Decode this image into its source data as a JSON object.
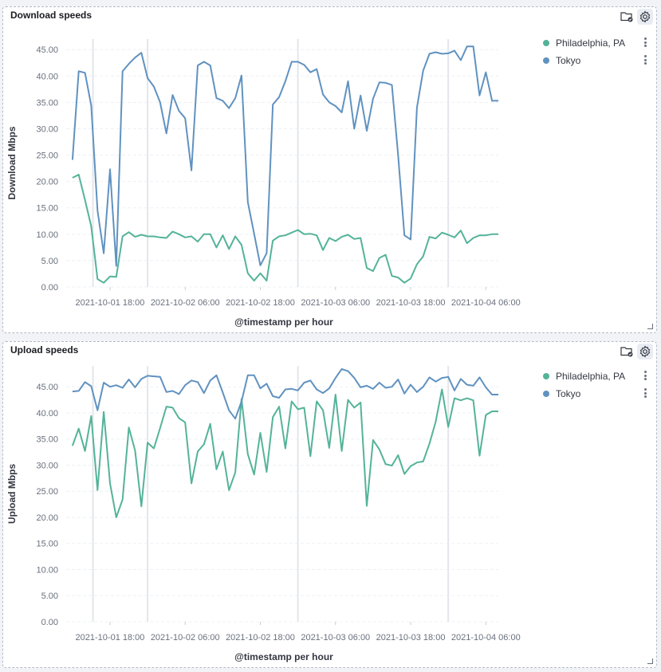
{
  "colors": {
    "series_philadelphia": "#54b399",
    "series_tokyo": "#6092c0",
    "grid": "#eef0f3",
    "axis_text": "#69707d"
  },
  "icons": [
    "folder-check-icon",
    "gear-icon",
    "more-vertical-icon",
    "resize-handle-icon"
  ],
  "panels": [
    {
      "title": "Download speeds",
      "legend": [
        {
          "label": "Philadelphia, PA"
        },
        {
          "label": "Tokyo"
        }
      ]
    },
    {
      "title": "Upload speeds",
      "legend": [
        {
          "label": "Philadelphia, PA"
        },
        {
          "label": "Tokyo"
        }
      ]
    }
  ],
  "chart_data": [
    {
      "type": "line",
      "title": "Download speeds",
      "xlabel": "@timestamp per hour",
      "ylabel": "Download Mbps",
      "ylim": [
        0,
        47
      ],
      "y_ticks": [
        "0.00",
        "5.00",
        "10.00",
        "15.00",
        "20.00",
        "25.00",
        "30.00",
        "35.00",
        "40.00",
        "45.00"
      ],
      "x_tick_labels": [
        "2021-10-01 18:00",
        "2021-10-02 06:00",
        "2021-10-02 18:00",
        "2021-10-03 06:00",
        "2021-10-03 18:00",
        "2021-10-04 06:00"
      ],
      "x_range": [
        "2021-10-01 11:00",
        "2021-10-04 08:00"
      ],
      "x": [
        "2021-10-01 12:00",
        "2021-10-01 13:00",
        "2021-10-01 14:00",
        "2021-10-01 15:00",
        "2021-10-01 16:00",
        "2021-10-01 17:00",
        "2021-10-01 18:00",
        "2021-10-01 19:00",
        "2021-10-01 20:00",
        "2021-10-01 21:00",
        "2021-10-01 22:00",
        "2021-10-01 23:00",
        "2021-10-02 00:00",
        "2021-10-02 01:00",
        "2021-10-02 02:00",
        "2021-10-02 03:00",
        "2021-10-02 04:00",
        "2021-10-02 05:00",
        "2021-10-02 06:00",
        "2021-10-02 07:00",
        "2021-10-02 08:00",
        "2021-10-02 09:00",
        "2021-10-02 10:00",
        "2021-10-02 11:00",
        "2021-10-02 12:00",
        "2021-10-02 13:00",
        "2021-10-02 14:00",
        "2021-10-02 15:00",
        "2021-10-02 16:00",
        "2021-10-02 17:00",
        "2021-10-02 18:00",
        "2021-10-02 19:00",
        "2021-10-02 20:00",
        "2021-10-02 21:00",
        "2021-10-02 22:00",
        "2021-10-02 23:00",
        "2021-10-03 00:00",
        "2021-10-03 01:00",
        "2021-10-03 02:00",
        "2021-10-03 03:00",
        "2021-10-03 04:00",
        "2021-10-03 05:00",
        "2021-10-03 06:00",
        "2021-10-03 07:00",
        "2021-10-03 08:00",
        "2021-10-03 09:00",
        "2021-10-03 10:00",
        "2021-10-03 11:00",
        "2021-10-03 12:00",
        "2021-10-03 13:00",
        "2021-10-03 14:00",
        "2021-10-03 15:00",
        "2021-10-03 16:00",
        "2021-10-03 17:00",
        "2021-10-03 18:00",
        "2021-10-03 19:00",
        "2021-10-03 20:00",
        "2021-10-03 21:00",
        "2021-10-03 22:00",
        "2021-10-03 23:00",
        "2021-10-04 00:00",
        "2021-10-04 01:00",
        "2021-10-04 02:00",
        "2021-10-04 03:00",
        "2021-10-04 04:00",
        "2021-10-04 05:00",
        "2021-10-04 06:00",
        "2021-10-04 07:00",
        "2021-10-04 08:00"
      ],
      "series": [
        {
          "name": "Philadelphia, PA",
          "color": "#54b399",
          "values": [
            20.7,
            21.3,
            16.5,
            11.5,
            1.5,
            0.8,
            2.0,
            1.9,
            9.6,
            10.4,
            9.5,
            9.9,
            9.6,
            9.6,
            9.4,
            9.3,
            10.5,
            10.0,
            9.4,
            9.6,
            8.6,
            10.0,
            10.0,
            7.5,
            9.8,
            7.2,
            9.6,
            8.0,
            2.6,
            1.2,
            2.6,
            1.2,
            8.8,
            9.6,
            9.8,
            10.3,
            10.8,
            10.0,
            10.1,
            9.8,
            7.0,
            9.3,
            8.7,
            9.5,
            9.9,
            9.1,
            9.3,
            3.6,
            3.0,
            5.5,
            6.1,
            2.1,
            1.8,
            0.8,
            1.6,
            4.3,
            5.8,
            9.5,
            9.2,
            10.3,
            9.9,
            9.4,
            10.7,
            8.3,
            9.3,
            9.8,
            9.8,
            10.0,
            10.0
          ]
        },
        {
          "name": "Tokyo",
          "color": "#6092c0",
          "values": [
            24.1,
            40.9,
            40.6,
            34.4,
            14.5,
            6.4,
            22.3,
            4.0,
            40.9,
            42.3,
            43.5,
            44.4,
            39.6,
            38.0,
            35.0,
            29.1,
            36.4,
            33.4,
            32.0,
            22.1,
            42.0,
            42.7,
            42.0,
            35.8,
            35.3,
            33.9,
            35.8,
            40.1,
            16.1,
            10.1,
            4.1,
            6.4,
            34.6,
            36.0,
            39.0,
            42.7,
            42.7,
            42.1,
            40.7,
            41.3,
            36.5,
            35.0,
            34.3,
            33.1,
            39.0,
            30.0,
            36.3,
            29.6,
            35.7,
            38.8,
            38.7,
            38.3,
            25.0,
            9.8,
            9.0,
            34.0,
            41.0,
            44.2,
            44.5,
            44.2,
            44.3,
            44.8,
            43.0,
            45.6,
            45.6,
            36.3,
            40.7,
            35.3,
            35.3
          ]
        }
      ],
      "grid": true,
      "legend_position": "top-right"
    },
    {
      "type": "line",
      "title": "Upload speeds",
      "xlabel": "@timestamp per hour",
      "ylabel": "Upload Mbps",
      "ylim": [
        0,
        49
      ],
      "y_ticks": [
        "0.00",
        "5.00",
        "10.00",
        "15.00",
        "20.00",
        "25.00",
        "30.00",
        "35.00",
        "40.00",
        "45.00"
      ],
      "x_tick_labels": [
        "2021-10-01 18:00",
        "2021-10-02 06:00",
        "2021-10-02 18:00",
        "2021-10-03 06:00",
        "2021-10-03 18:00",
        "2021-10-04 06:00"
      ],
      "x_range": [
        "2021-10-01 11:00",
        "2021-10-04 08:00"
      ],
      "x": [
        "2021-10-01 12:00",
        "2021-10-01 13:00",
        "2021-10-01 14:00",
        "2021-10-01 15:00",
        "2021-10-01 16:00",
        "2021-10-01 17:00",
        "2021-10-01 18:00",
        "2021-10-01 19:00",
        "2021-10-01 20:00",
        "2021-10-01 21:00",
        "2021-10-01 22:00",
        "2021-10-01 23:00",
        "2021-10-02 00:00",
        "2021-10-02 01:00",
        "2021-10-02 02:00",
        "2021-10-02 03:00",
        "2021-10-02 04:00",
        "2021-10-02 05:00",
        "2021-10-02 06:00",
        "2021-10-02 07:00",
        "2021-10-02 08:00",
        "2021-10-02 09:00",
        "2021-10-02 10:00",
        "2021-10-02 11:00",
        "2021-10-02 12:00",
        "2021-10-02 13:00",
        "2021-10-02 14:00",
        "2021-10-02 15:00",
        "2021-10-02 16:00",
        "2021-10-02 17:00",
        "2021-10-02 18:00",
        "2021-10-02 19:00",
        "2021-10-02 20:00",
        "2021-10-02 21:00",
        "2021-10-02 22:00",
        "2021-10-02 23:00",
        "2021-10-03 00:00",
        "2021-10-03 01:00",
        "2021-10-03 02:00",
        "2021-10-03 03:00",
        "2021-10-03 04:00",
        "2021-10-03 05:00",
        "2021-10-03 06:00",
        "2021-10-03 07:00",
        "2021-10-03 08:00",
        "2021-10-03 09:00",
        "2021-10-03 10:00",
        "2021-10-03 11:00",
        "2021-10-03 12:00",
        "2021-10-03 13:00",
        "2021-10-03 14:00",
        "2021-10-03 15:00",
        "2021-10-03 16:00",
        "2021-10-03 17:00",
        "2021-10-03 18:00",
        "2021-10-03 19:00",
        "2021-10-03 20:00",
        "2021-10-03 21:00",
        "2021-10-03 22:00",
        "2021-10-03 23:00",
        "2021-10-04 00:00",
        "2021-10-04 01:00",
        "2021-10-04 02:00",
        "2021-10-04 03:00",
        "2021-10-04 04:00",
        "2021-10-04 05:00",
        "2021-10-04 06:00",
        "2021-10-04 07:00",
        "2021-10-04 08:00"
      ],
      "series": [
        {
          "name": "Philadelphia, PA",
          "color": "#54b399",
          "values": [
            33.7,
            37.0,
            32.7,
            39.4,
            25.2,
            40.2,
            26.5,
            20.0,
            23.4,
            37.2,
            32.8,
            22.1,
            34.3,
            33.2,
            37.1,
            41.2,
            41.0,
            39.0,
            38.2,
            26.5,
            32.6,
            34.0,
            37.9,
            29.2,
            32.6,
            25.2,
            28.6,
            42.7,
            32.1,
            28.2,
            36.2,
            28.7,
            39.2,
            41.2,
            33.2,
            42.2,
            40.7,
            41.0,
            31.7,
            42.2,
            40.5,
            33.3,
            43.5,
            32.7,
            42.5,
            41.0,
            42.0,
            22.2,
            34.8,
            33.0,
            30.2,
            29.9,
            31.9,
            28.3,
            29.8,
            30.5,
            30.7,
            34.1,
            38.3,
            44.5,
            37.3,
            42.8,
            42.4,
            42.8,
            42.4,
            31.8,
            39.6,
            40.3,
            40.3
          ]
        },
        {
          "name": "Tokyo",
          "color": "#6092c0",
          "values": [
            44.1,
            44.2,
            45.9,
            45.1,
            40.5,
            45.8,
            45.0,
            45.3,
            44.8,
            46.4,
            44.9,
            46.5,
            47.1,
            47.0,
            46.9,
            44.0,
            44.2,
            43.6,
            45.3,
            46.2,
            45.9,
            43.8,
            46.2,
            47.2,
            43.9,
            40.5,
            38.9,
            42.2,
            47.2,
            47.2,
            44.7,
            45.6,
            43.2,
            42.9,
            44.5,
            44.6,
            44.3,
            45.8,
            46.2,
            44.5,
            43.8,
            44.7,
            46.7,
            48.4,
            48.0,
            46.7,
            44.9,
            45.2,
            44.6,
            45.8,
            44.8,
            45.0,
            46.4,
            43.7,
            45.4,
            44.0,
            45.0,
            46.8,
            46.0,
            46.7,
            46.9,
            44.3,
            46.5,
            45.4,
            45.2,
            46.8,
            44.9,
            43.5,
            43.5
          ]
        }
      ],
      "grid": true,
      "legend_position": "top-right"
    }
  ]
}
